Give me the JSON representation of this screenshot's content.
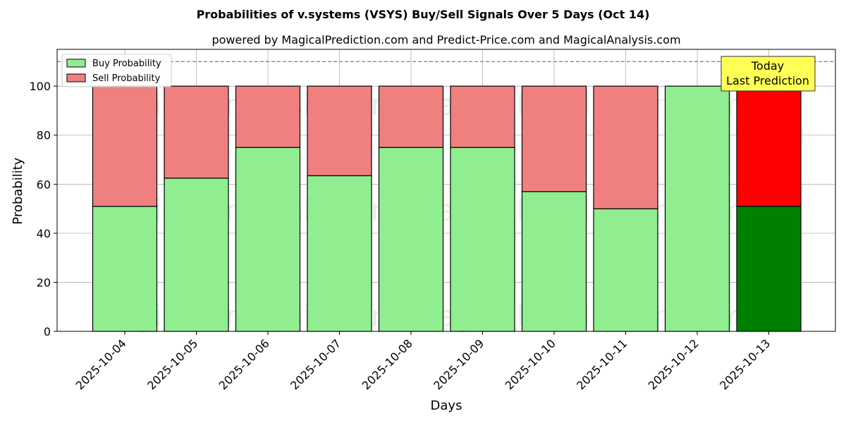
{
  "chart_data": {
    "type": "bar",
    "stacked": true,
    "title": "Probabilities of v.systems (VSYS) Buy/Sell Signals Over 5 Days (Oct 14)",
    "subtitle": "powered by MagicalPrediction.com and Predict-Price.com and MagicalAnalysis.com",
    "xlabel": "Days",
    "ylabel": "Probability",
    "ylim": [
      0,
      115
    ],
    "yticks": [
      0,
      20,
      40,
      60,
      80,
      100
    ],
    "grid": true,
    "legend_position": "top-left",
    "categories": [
      "2025-10-04",
      "2025-10-05",
      "2025-10-06",
      "2025-10-07",
      "2025-10-08",
      "2025-10-09",
      "2025-10-10",
      "2025-10-11",
      "2025-10-12",
      "2025-10-13"
    ],
    "series": [
      {
        "name": "Buy Probability",
        "color": "#90ee90",
        "values": [
          51,
          62.5,
          75,
          63.5,
          75,
          75,
          57,
          50,
          100,
          51
        ]
      },
      {
        "name": "Sell Probability",
        "color": "#f08080",
        "values": [
          49,
          37.5,
          25,
          36.5,
          25,
          25,
          43,
          50,
          0,
          49
        ]
      }
    ],
    "highlight": {
      "index": 9,
      "buy_color": "#008000",
      "sell_color": "#ff0000"
    },
    "reference_line": {
      "y": 110,
      "style": "dashed",
      "color": "#808080"
    },
    "annotation": {
      "lines": [
        "Today",
        "Last Prediction"
      ],
      "background": "#ffff55"
    },
    "watermarks": [
      "MagicalAnalysis.com",
      "MagicalPrediction.com"
    ]
  }
}
